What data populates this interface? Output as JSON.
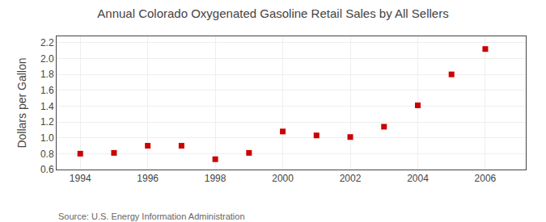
{
  "chart_data": {
    "type": "scatter",
    "title": "Annual Colorado Oxygenated Gasoline Retail Sales by All Sellers",
    "y_label": "Dollars per Gallon",
    "annotations": [
      "Source: U.S. Energy Information Administration"
    ],
    "x": [
      1994,
      1995,
      1996,
      1997,
      1998,
      1999,
      2000,
      2001,
      2002,
      2003,
      2004,
      2005,
      2006
    ],
    "values": [
      0.8,
      0.81,
      0.9,
      0.9,
      0.73,
      0.81,
      1.08,
      1.03,
      1.01,
      1.14,
      1.41,
      1.8,
      2.12
    ],
    "color": "#cc0000",
    "marker": "square",
    "xlim": [
      1993.3,
      2007.2
    ],
    "xticks": [
      1994,
      1996,
      1998,
      2000,
      2002,
      2004,
      2006
    ],
    "ylim": [
      0.6,
      2.28
    ],
    "yticks": [
      0.6,
      0.8,
      {
        "value": 1.0,
        "label": "1.0"
      },
      1.2,
      1.4,
      1.6,
      1.8,
      {
        "value": 2.0,
        "label": "2.0"
      },
      2.2
    ],
    "grid": true
  }
}
